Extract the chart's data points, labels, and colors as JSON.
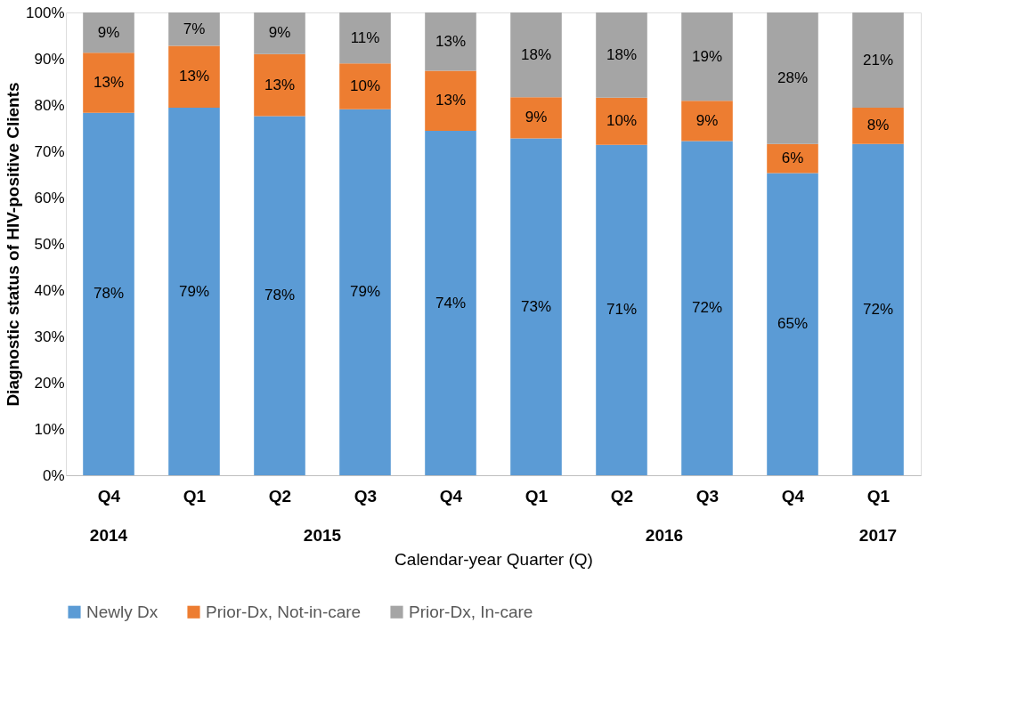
{
  "chart_data": {
    "type": "bar",
    "stacked": true,
    "ylabel": "Diagnostic status of HIV-positive Clients",
    "xlabel": "Calendar-year Quarter (Q)",
    "categories": [
      "Q4",
      "Q1",
      "Q2",
      "Q3",
      "Q4",
      "Q1",
      "Q2",
      "Q3",
      "Q4",
      "Q1"
    ],
    "annotations": [
      "2014",
      "2015",
      "2016",
      "2017"
    ],
    "series": [
      {
        "name": "Newly Dx",
        "color": "#5b9bd5",
        "values": [
          78.3,
          79.4,
          77.6,
          79.1,
          74.4,
          72.8,
          71.4,
          72.2,
          65.3,
          71.6
        ],
        "value_labels": [
          "78%",
          "79%",
          "78%",
          "79%",
          "74%",
          "73%",
          "71%",
          "72%",
          "65%",
          "72%"
        ]
      },
      {
        "name": "Prior-Dx, Not-in-care",
        "color": "#ed7d31",
        "values": [
          13.0,
          13.4,
          13.4,
          9.9,
          13.0,
          8.9,
          10.2,
          8.7,
          6.3,
          7.8
        ],
        "value_labels": [
          "13%",
          "13%",
          "13%",
          "10%",
          "13%",
          "9%",
          "10%",
          "9%",
          "6%",
          "8%"
        ]
      },
      {
        "name": "Prior-Dx, In-care",
        "color": "#a5a5a5",
        "values": [
          8.7,
          7.2,
          9.0,
          11.0,
          12.6,
          18.3,
          18.4,
          19.1,
          28.4,
          20.6
        ],
        "value_labels": [
          "9%",
          "7%",
          "9%",
          "11%",
          "13%",
          "18%",
          "18%",
          "19%",
          "28%",
          "21%"
        ]
      }
    ],
    "ylim": [
      0,
      100
    ],
    "yticks": [
      {
        "value": 0,
        "label": "0%"
      },
      {
        "value": 10,
        "label": "10%"
      },
      {
        "value": 20,
        "label": "20%"
      },
      {
        "value": 30,
        "label": "30%"
      },
      {
        "value": 40,
        "label": "40%"
      },
      {
        "value": 50,
        "label": "50%"
      },
      {
        "value": 60,
        "label": "60%"
      },
      {
        "value": 70,
        "label": "70%"
      },
      {
        "value": 80,
        "label": "80%"
      },
      {
        "value": 90,
        "label": "90%"
      },
      {
        "value": 100,
        "label": "100%"
      }
    ],
    "legend": "bottom",
    "grid": false
  }
}
